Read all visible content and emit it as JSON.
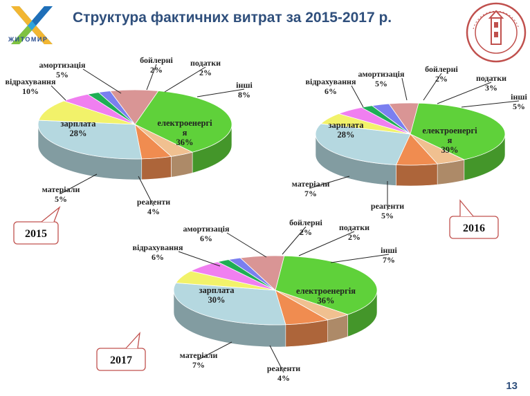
{
  "title": "Структура фактичних витрат за 2015-2017 р.",
  "logo_text": "ЖИТОМИР",
  "page_number": "13",
  "colors": {
    "title": "#2f4f7c",
    "callout_border": "#c0504d"
  },
  "chart_data": [
    {
      "type": "pie",
      "year": "2015",
      "slices": [
        {
          "label": "електроенергія",
          "value": 36,
          "pct": "36%",
          "color": "#5fd13a"
        },
        {
          "label": "реагенти",
          "value": 4,
          "pct": "4%",
          "color": "#f0c090"
        },
        {
          "label": "матеріали",
          "value": 5,
          "pct": "5%",
          "color": "#f08c50"
        },
        {
          "label": "зарплата",
          "value": 28,
          "pct": "28%",
          "color": "#b5d8e0"
        },
        {
          "label": "відрахування",
          "value": 10,
          "pct": "10%",
          "color": "#f2f26a"
        },
        {
          "label": "амортизація",
          "value": 5,
          "pct": "5%",
          "color": "#f07ff0"
        },
        {
          "label": "бойлерні",
          "value": 2,
          "pct": "2%",
          "color": "#1fae55"
        },
        {
          "label": "податки",
          "value": 2,
          "pct": "2%",
          "color": "#7a7ff0"
        },
        {
          "label": "інші",
          "value": 8,
          "pct": "8%",
          "color": "#d99595"
        }
      ]
    },
    {
      "type": "pie",
      "year": "2016",
      "slices": [
        {
          "label": "електроенергія",
          "value": 39,
          "pct": "39%",
          "color": "#5fd13a"
        },
        {
          "label": "реагенти",
          "value": 5,
          "pct": "5%",
          "color": "#f0c090"
        },
        {
          "label": "матеріали",
          "value": 7,
          "pct": "7%",
          "color": "#f08c50"
        },
        {
          "label": "зарплата",
          "value": 28,
          "pct": "28%",
          "color": "#b5d8e0"
        },
        {
          "label": "відрахування",
          "value": 6,
          "pct": "6%",
          "color": "#f2f26a"
        },
        {
          "label": "амортизація",
          "value": 5,
          "pct": "5%",
          "color": "#f07ff0"
        },
        {
          "label": "бойлерні",
          "value": 2,
          "pct": "2%",
          "color": "#1fae55"
        },
        {
          "label": "податки",
          "value": 3,
          "pct": "3%",
          "color": "#7a7ff0"
        },
        {
          "label": "інші",
          "value": 5,
          "pct": "5%",
          "color": "#d99595"
        }
      ]
    },
    {
      "type": "pie",
      "year": "2017",
      "slices": [
        {
          "label": "електроенергія",
          "value": 36,
          "pct": "36%",
          "color": "#5fd13a"
        },
        {
          "label": "реагенти",
          "value": 4,
          "pct": "4%",
          "color": "#f0c090"
        },
        {
          "label": "матеріали",
          "value": 7,
          "pct": "7%",
          "color": "#f08c50"
        },
        {
          "label": "зарплата",
          "value": 30,
          "pct": "30%",
          "color": "#b5d8e0"
        },
        {
          "label": "відрахування",
          "value": 6,
          "pct": "6%",
          "color": "#f2f26a"
        },
        {
          "label": "амортизація",
          "value": 6,
          "pct": "6%",
          "color": "#f07ff0"
        },
        {
          "label": "бойлерні",
          "value": 2,
          "pct": "2%",
          "color": "#1fae55"
        },
        {
          "label": "податки",
          "value": 2,
          "pct": "2%",
          "color": "#7a7ff0"
        },
        {
          "label": "інші",
          "value": 7,
          "pct": "7%",
          "color": "#d99595"
        }
      ]
    }
  ]
}
